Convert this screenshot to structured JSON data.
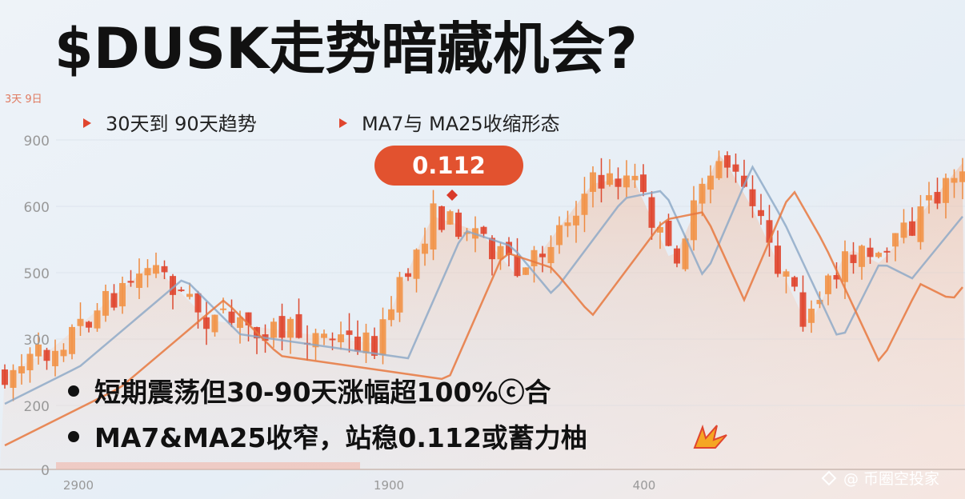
{
  "header": {
    "title": "$DUSK走势暗藏机会?",
    "corner": "3天 9日"
  },
  "legend": [
    "30天到 90天趋势",
    "MA7与 MA25收缩形态"
  ],
  "callout": "0.112",
  "axis": {
    "y": [
      "900",
      "600",
      "500",
      "300",
      "200",
      "0"
    ],
    "x": [
      "2900",
      "1900",
      "400"
    ]
  },
  "bullets": [
    "短期震荡但30-90天涨幅超100%ⓒ合",
    "MA7&MA25收窄，站稳0.112或蓄力柚"
  ],
  "watermark": "@ 币圈空投家"
}
